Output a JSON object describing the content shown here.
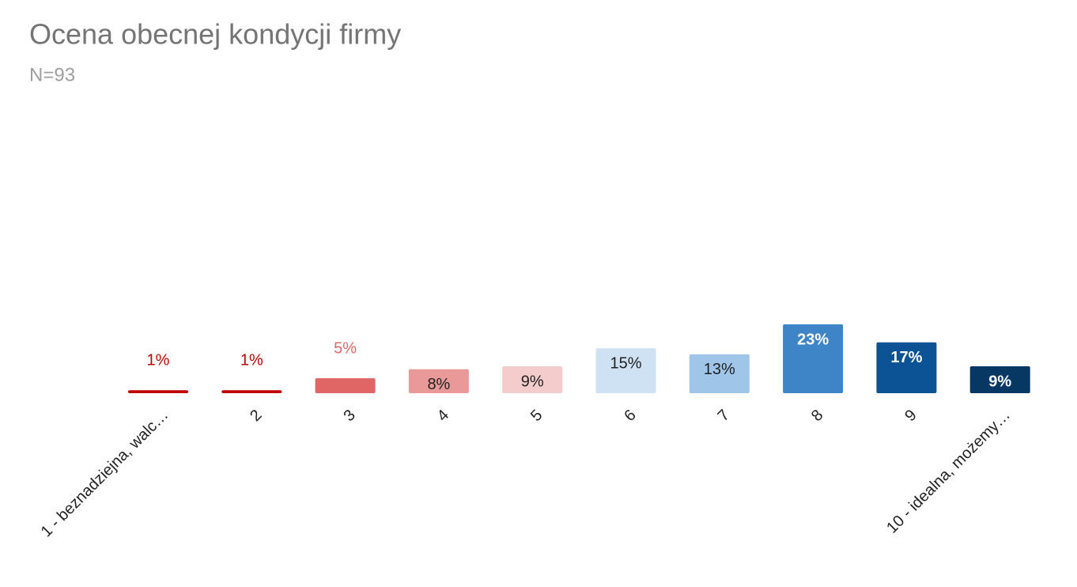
{
  "chart_data": {
    "type": "bar",
    "title": "Ocena obecnej kondycji firmy",
    "subtitle": "N=93",
    "categories": [
      "1 - beznadziejna, walc…",
      "2",
      "3",
      "4",
      "5",
      "6",
      "7",
      "8",
      "9",
      "10 - idealna, możemy…"
    ],
    "values": [
      1,
      1,
      5,
      8,
      9,
      15,
      13,
      23,
      17,
      9
    ],
    "value_labels": [
      "1%",
      "1%",
      "5%",
      "8%",
      "9%",
      "15%",
      "13%",
      "23%",
      "17%",
      "9%"
    ],
    "colors": [
      "#c00000",
      "#c00000",
      "#e06666",
      "#ea9999",
      "#f4cccc",
      "#cfe2f3",
      "#9fc5e8",
      "#3d85c6",
      "#0b5394",
      "#073763"
    ]
  }
}
